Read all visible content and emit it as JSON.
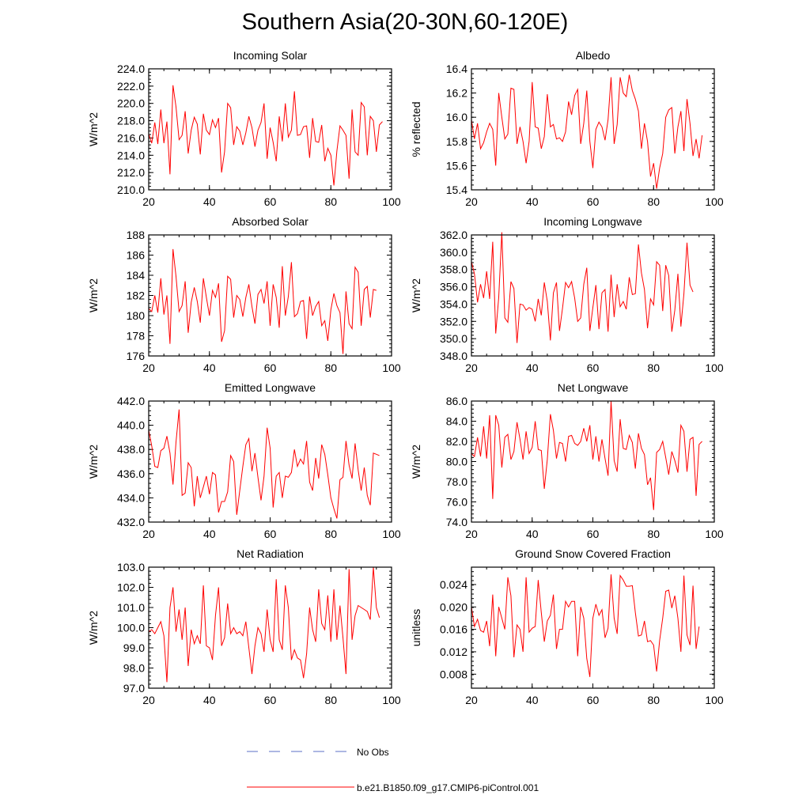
{
  "title": "Southern Asia(20-30N,60-120E)",
  "legend": [
    {
      "label": "No Obs",
      "color": "#5b6fc7",
      "style": "dashed"
    },
    {
      "label": "b.e21.B1850.f09_g17.CMIP6-piControl.001",
      "color": "#ff0000",
      "style": "solid"
    }
  ],
  "chart_data": [
    {
      "type": "line",
      "title": "Incoming Solar",
      "xlabel": "",
      "ylabel": "W/m^2",
      "xlim": [
        20,
        100
      ],
      "ylim": [
        210,
        224
      ],
      "xticks": [
        20,
        40,
        60,
        80,
        100
      ],
      "yticks": [
        210.0,
        212.0,
        214.0,
        216.0,
        218.0,
        220.0,
        222.0,
        224.0
      ],
      "ydec": 1,
      "x_start": 20,
      "series": [
        {
          "name": "b.e21.B1850.f09_g17.CMIP6-piControl.001",
          "color": "#ff0000",
          "values": [
            216.5,
            215.4,
            217.8,
            215.3,
            219.3,
            215.4,
            217.9,
            211.8,
            222.1,
            219.6,
            215.8,
            216.3,
            219.1,
            214.2,
            216.9,
            218.4,
            217.6,
            214.1,
            218.8,
            216.9,
            216.4,
            218.1,
            217.2,
            218.3,
            212.0,
            214.4,
            220.0,
            219.5,
            215.2,
            217.3,
            216.8,
            215.2,
            216.6,
            218.5,
            217.2,
            215.0,
            216.9,
            217.8,
            220.0,
            213.6,
            217.2,
            215.5,
            213.3,
            218.5,
            215.6,
            220.0,
            216.1,
            216.9,
            221.4,
            216.3,
            216.4,
            217.3,
            217.4,
            213.7,
            218.3,
            215.6,
            215.5,
            217.5,
            213.3,
            214.8,
            214.0,
            210.5,
            214.5,
            217.4,
            216.9,
            216.3,
            211.3,
            219.3,
            214.4,
            214.0,
            220.1,
            219.6,
            214.0,
            218.5,
            218.0,
            214.4,
            217.5,
            217.9
          ]
        }
      ]
    },
    {
      "type": "line",
      "title": "Albedo",
      "xlabel": "",
      "ylabel": "% reflected",
      "xlim": [
        20,
        100
      ],
      "ylim": [
        15.4,
        16.4
      ],
      "xticks": [
        20,
        40,
        60,
        80,
        100
      ],
      "yticks": [
        15.4,
        15.6,
        15.8,
        16.0,
        16.2,
        16.4
      ],
      "ydec": 1,
      "x_start": 20,
      "series": [
        {
          "name": "b.e21.B1850.f09_g17.CMIP6-piControl.001",
          "color": "#ff0000",
          "values": [
            15.98,
            15.82,
            15.95,
            15.74,
            15.79,
            15.88,
            15.95,
            15.9,
            15.6,
            16.2,
            16.0,
            15.82,
            15.86,
            16.24,
            16.23,
            15.78,
            15.92,
            15.8,
            15.62,
            15.8,
            16.29,
            15.92,
            15.91,
            15.74,
            15.84,
            16.19,
            15.92,
            15.94,
            15.82,
            15.83,
            15.8,
            15.88,
            16.13,
            16.02,
            16.18,
            16.23,
            15.78,
            15.95,
            16.22,
            15.8,
            15.58,
            15.9,
            15.96,
            15.92,
            15.81,
            15.98,
            16.33,
            15.78,
            15.94,
            16.33,
            16.2,
            16.17,
            16.35,
            16.22,
            16.15,
            16.05,
            15.74,
            15.95,
            15.8,
            15.51,
            15.62,
            15.41,
            15.58,
            15.7,
            16.0,
            16.06,
            16.08,
            15.7,
            15.92,
            16.05,
            15.72,
            16.15,
            15.95,
            15.68,
            15.82,
            15.66,
            15.85
          ]
        }
      ]
    },
    {
      "type": "line",
      "title": "Absorbed Solar",
      "xlabel": "",
      "ylabel": "W/m^2",
      "xlim": [
        20,
        100
      ],
      "ylim": [
        176,
        188
      ],
      "xticks": [
        20,
        40,
        60,
        80,
        100
      ],
      "yticks": [
        176,
        178,
        180,
        182,
        184,
        186,
        188
      ],
      "ydec": 0,
      "x_start": 20,
      "series": [
        {
          "name": "b.e21.B1850.f09_g17.CMIP6-piControl.001",
          "color": "#ff0000",
          "values": [
            180.7,
            180.4,
            182.0,
            180.3,
            183.7,
            180.1,
            182.0,
            177.2,
            186.6,
            183.9,
            180.4,
            181.0,
            183.4,
            178.3,
            181.3,
            182.8,
            181.4,
            179.3,
            183.7,
            181.8,
            180.0,
            182.5,
            181.8,
            183.2,
            177.4,
            178.5,
            183.9,
            183.6,
            179.8,
            182.0,
            181.6,
            179.9,
            181.8,
            183.1,
            180.9,
            179.2,
            182.1,
            182.6,
            181.2,
            183.4,
            179.0,
            183.1,
            181.8,
            178.8,
            184.9,
            180.0,
            181.9,
            185.3,
            179.9,
            180.2,
            181.4,
            181.5,
            177.7,
            181.9,
            180.0,
            180.9,
            181.4,
            179.0,
            179.5,
            177.5,
            180.6,
            182.2,
            181.0,
            180.3,
            176.2,
            182.4,
            179.2,
            178.7,
            184.8,
            184.3,
            179.0,
            182.6,
            182.9,
            179.8,
            182.6,
            182.5
          ]
        }
      ]
    },
    {
      "type": "line",
      "title": "Incoming Longwave",
      "xlabel": "",
      "ylabel": "W/m^2",
      "xlim": [
        20,
        100
      ],
      "ylim": [
        348,
        362
      ],
      "xticks": [
        20,
        40,
        60,
        80,
        100
      ],
      "yticks": [
        348.0,
        350.0,
        352.0,
        354.0,
        356.0,
        358.0,
        360.0,
        362.0
      ],
      "ydec": 1,
      "x_start": 20,
      "series": [
        {
          "name": "b.e21.B1850.f09_g17.CMIP6-piControl.001",
          "color": "#ff0000",
          "values": [
            358.9,
            357.5,
            354.2,
            356.3,
            354.7,
            357.8,
            354.6,
            361.2,
            350.6,
            354.8,
            362.3,
            352.4,
            351.9,
            356.6,
            355.8,
            349.5,
            354.0,
            353.9,
            353.3,
            353.6,
            353.4,
            352.0,
            354.6,
            352.7,
            356.5,
            354.3,
            349.8,
            355.3,
            356.5,
            350.9,
            353.5,
            356.5,
            355.9,
            356.6,
            354.7,
            352.0,
            352.4,
            356.3,
            358.2,
            350.9,
            353.6,
            356.2,
            351.1,
            355.3,
            355.7,
            350.8,
            357.4,
            352.5,
            356.3,
            353.7,
            354.3,
            353.4,
            357.1,
            355.1,
            355.2,
            360.9,
            357.6,
            355.7,
            351.2,
            354.6,
            353.9,
            358.9,
            358.5,
            353.2,
            358.5,
            357.3,
            350.8,
            353.3,
            357.5,
            351.4,
            355.2,
            361.1,
            356.2,
            355.4
          ]
        }
      ]
    },
    {
      "type": "line",
      "title": "Emitted Longwave",
      "xlabel": "",
      "ylabel": "W/m^2",
      "xlim": [
        20,
        100
      ],
      "ylim": [
        432,
        442
      ],
      "xticks": [
        20,
        40,
        60,
        80,
        100
      ],
      "yticks": [
        432.0,
        434.0,
        436.0,
        438.0,
        440.0,
        442.0
      ],
      "ydec": 1,
      "x_start": 20,
      "series": [
        {
          "name": "b.e21.B1850.f09_g17.CMIP6-piControl.001",
          "color": "#ff0000",
          "values": [
            439.6,
            438.3,
            436.6,
            436.5,
            437.9,
            438.1,
            439.1,
            437.7,
            435.1,
            438.6,
            441.3,
            434.2,
            434.4,
            436.9,
            436.5,
            433.3,
            435.8,
            434.0,
            434.9,
            435.8,
            434.3,
            436.1,
            435.9,
            432.8,
            433.7,
            433.7,
            434.5,
            437.5,
            437.0,
            432.6,
            434.6,
            436.6,
            438.4,
            438.9,
            436.2,
            437.7,
            435.7,
            433.8,
            435.8,
            439.8,
            438.1,
            433.2,
            435.8,
            436.1,
            434.0,
            435.8,
            435.7,
            436.1,
            438.0,
            436.6,
            437.2,
            436.8,
            438.7,
            435.3,
            434.6,
            437.3,
            435.6,
            438.4,
            437.6,
            435.9,
            434.0,
            433.1,
            432.3,
            435.5,
            435.7,
            438.7,
            436.7,
            435.6,
            438.5,
            436.3,
            434.6,
            436.5,
            434.2,
            433.4,
            437.7,
            437.6,
            437.5
          ]
        }
      ]
    },
    {
      "type": "line",
      "title": "Net Longwave",
      "xlabel": "",
      "ylabel": "W/m^2",
      "xlim": [
        20,
        100
      ],
      "ylim": [
        74,
        86
      ],
      "xticks": [
        20,
        40,
        60,
        80,
        100
      ],
      "yticks": [
        74.0,
        76.0,
        78.0,
        80.0,
        82.0,
        84.0,
        86.0
      ],
      "ydec": 1,
      "x_start": 20,
      "series": [
        {
          "name": "b.e21.B1850.f09_g17.CMIP6-piControl.001",
          "color": "#ff0000",
          "values": [
            80.8,
            80.5,
            82.4,
            80.5,
            83.5,
            80.3,
            84.6,
            76.3,
            84.6,
            83.6,
            79.4,
            82.4,
            82.7,
            80.2,
            81.0,
            83.9,
            82.2,
            80.2,
            83.0,
            80.8,
            81.4,
            84.0,
            81.2,
            81.1,
            77.3,
            80.2,
            84.7,
            83.1,
            80.3,
            81.9,
            81.8,
            80.0,
            82.5,
            82.6,
            81.8,
            81.6,
            82.0,
            83.3,
            82.0,
            83.6,
            80.2,
            82.5,
            80.0,
            82.2,
            80.3,
            78.6,
            86.0,
            80.1,
            79.0,
            84.2,
            81.3,
            81.2,
            82.6,
            81.9,
            79.3,
            82.8,
            81.3,
            80.7,
            77.7,
            78.4,
            75.2,
            80.9,
            81.2,
            82.0,
            80.4,
            78.7,
            81.0,
            80.1,
            78.9,
            83.6,
            83.0,
            79.0,
            82.2,
            82.4,
            76.6,
            81.7,
            82.0
          ]
        }
      ]
    },
    {
      "type": "line",
      "title": "Net Radiation",
      "xlabel": "",
      "ylabel": "W/m^2",
      "xlim": [
        20,
        100
      ],
      "ylim": [
        97,
        103
      ],
      "xticks": [
        20,
        40,
        60,
        80,
        100
      ],
      "yticks": [
        97.0,
        98.0,
        99.0,
        100.0,
        101.0,
        102.0,
        103.0
      ],
      "ydec": 1,
      "x_start": 20,
      "series": [
        {
          "name": "b.e21.B1850.f09_g17.CMIP6-piControl.001",
          "color": "#ff0000",
          "values": [
            99.8,
            99.9,
            99.7,
            100.0,
            100.3,
            99.6,
            97.3,
            101.0,
            102.0,
            99.8,
            100.9,
            99.4,
            101.0,
            98.1,
            99.9,
            99.2,
            99.6,
            99.2,
            102.1,
            99.1,
            99.0,
            98.4,
            100.6,
            102.0,
            99.1,
            99.5,
            101.2,
            99.7,
            100.0,
            99.7,
            99.8,
            99.6,
            100.3,
            99.0,
            97.7,
            99.1,
            100.0,
            99.7,
            98.8,
            100.9,
            99.4,
            98.8,
            102.4,
            99.4,
            98.9,
            102.1,
            101.0,
            98.4,
            98.9,
            98.5,
            98.4,
            97.5,
            98.7,
            101.0,
            99.9,
            99.3,
            101.9,
            100.2,
            99.9,
            101.6,
            99.3,
            101.9,
            99.4,
            101.1,
            99.5,
            97.7,
            102.9,
            99.4,
            100.6,
            101.1,
            101.0,
            100.9,
            100.8,
            100.4,
            103.0,
            101.0,
            100.5
          ]
        }
      ]
    },
    {
      "type": "line",
      "title": "Ground Snow Covered Fraction",
      "xlabel": "",
      "ylabel": "unitless",
      "xlim": [
        20,
        100
      ],
      "ylim": [
        0.0055,
        0.0271
      ],
      "xticks": [
        20,
        40,
        60,
        80,
        100
      ],
      "yticks": [
        0.008,
        0.012,
        0.016,
        0.02,
        0.024
      ],
      "ydec": 3,
      "x_start": 20,
      "series": [
        {
          "name": "b.e21.B1850.f09_g17.CMIP6-piControl.001",
          "color": "#ff0000",
          "values": [
            0.02,
            0.0165,
            0.0178,
            0.0158,
            0.0155,
            0.0175,
            0.013,
            0.0222,
            0.0112,
            0.02,
            0.018,
            0.016,
            0.0253,
            0.022,
            0.011,
            0.0168,
            0.016,
            0.012,
            0.0253,
            0.0155,
            0.0162,
            0.0165,
            0.0248,
            0.019,
            0.0138,
            0.0175,
            0.0185,
            0.0222,
            0.0125,
            0.016,
            0.016,
            0.021,
            0.02,
            0.021,
            0.021,
            0.0112,
            0.02,
            0.018,
            0.0108,
            0.0075,
            0.018,
            0.0205,
            0.0185,
            0.0195,
            0.0145,
            0.0162,
            0.0258,
            0.018,
            0.0152,
            0.0256,
            0.0248,
            0.0237,
            0.0237,
            0.0238,
            0.019,
            0.0148,
            0.015,
            0.0175,
            0.0138,
            0.014,
            0.0132,
            0.0085,
            0.014,
            0.018,
            0.0228,
            0.023,
            0.0198,
            0.022,
            0.018,
            0.012,
            0.0256,
            0.015,
            0.0132,
            0.0238,
            0.0125,
            0.0165
          ]
        }
      ]
    }
  ]
}
